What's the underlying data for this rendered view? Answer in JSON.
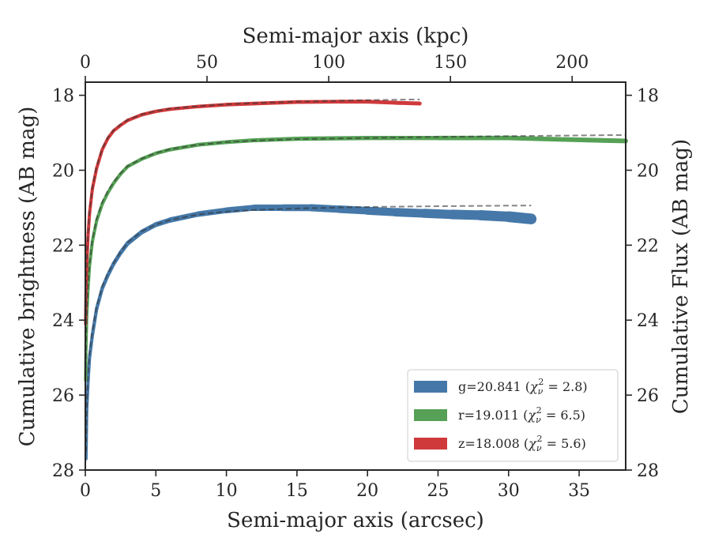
{
  "chart_data": {
    "type": "line",
    "xlabel": "Semi-major axis (arcsec)",
    "x2label": "Semi-major axis (kpc)",
    "ylabel": "Cumulative brightness (AB mag)",
    "y2label": "Cumulative Flux (AB mag)",
    "xlim": [
      0,
      38.3
    ],
    "ylim": [
      28,
      17.65
    ],
    "x2lim": [
      0,
      222
    ],
    "y_inverted": true,
    "xticks": [
      "0",
      "5",
      "10",
      "15",
      "20",
      "25",
      "30",
      "35"
    ],
    "xtick_values": [
      0,
      5,
      10,
      15,
      20,
      25,
      30,
      35
    ],
    "x2ticks": [
      "0",
      "50",
      "100",
      "150",
      "200"
    ],
    "x2tick_values": [
      0,
      50,
      100,
      150,
      200
    ],
    "yticks": [
      "18",
      "20",
      "22",
      "24",
      "26",
      "28"
    ],
    "ytick_values": [
      18,
      20,
      22,
      24,
      26,
      28
    ],
    "grid": false,
    "legend_position": "lower-right",
    "series": [
      {
        "name": "g",
        "legend_main": "g=20.841 (",
        "legend_chi": "χ",
        "legend_sub": "ν",
        "legend_sup": "2",
        "legend_rest": " = 2.8)",
        "color": "#4578a8",
        "x": [
          0.05,
          0.1,
          0.2,
          0.3,
          0.5,
          0.8,
          1.2,
          1.6,
          2.0,
          2.5,
          3.0,
          4.0,
          5.0,
          6.0,
          8.0,
          10.0,
          12.0,
          14.0,
          16.0,
          18.0,
          20.0,
          22.0,
          24.0,
          26.0,
          28.0,
          30.0,
          31.6
        ],
        "y": [
          27.7,
          26.4,
          25.6,
          25.0,
          24.4,
          23.7,
          23.15,
          22.8,
          22.5,
          22.2,
          21.95,
          21.65,
          21.45,
          21.33,
          21.17,
          21.07,
          21.0,
          21.0,
          21.0,
          21.04,
          21.08,
          21.12,
          21.15,
          21.18,
          21.2,
          21.24,
          21.3
        ],
        "width_start": 4,
        "width_end": 14
      },
      {
        "name": "r",
        "legend_main": "r=19.011 (",
        "legend_chi": "χ",
        "legend_sub": "ν",
        "legend_sup": "2",
        "legend_rest": " = 6.5)",
        "color": "#56a156",
        "x": [
          0.02,
          0.05,
          0.1,
          0.2,
          0.3,
          0.5,
          0.8,
          1.2,
          1.6,
          2.0,
          2.5,
          3.0,
          4.0,
          5.0,
          6.0,
          8.0,
          10.0,
          12.0,
          15.0,
          20.0,
          25.0,
          30.0,
          34.0,
          38.3
        ],
        "y": [
          25.6,
          24.7,
          23.9,
          23.1,
          22.55,
          21.9,
          21.35,
          20.9,
          20.6,
          20.35,
          20.1,
          19.9,
          19.7,
          19.55,
          19.45,
          19.32,
          19.25,
          19.2,
          19.16,
          19.14,
          19.14,
          19.14,
          19.18,
          19.22
        ],
        "width_start": 4,
        "width_end": 6
      },
      {
        "name": "z",
        "legend_main": "z=18.008 (",
        "legend_chi": "χ",
        "legend_sub": "ν",
        "legend_sup": "2",
        "legend_rest": " = 5.6)",
        "color": "#d0393b",
        "x": [
          0.02,
          0.05,
          0.1,
          0.2,
          0.3,
          0.5,
          0.8,
          1.2,
          1.6,
          2.0,
          2.5,
          3.0,
          4.0,
          5.0,
          6.0,
          8.0,
          10.0,
          12.0,
          15.0,
          18.0,
          20.0,
          22.0,
          23.7
        ],
        "y": [
          24.1,
          23.2,
          22.5,
          21.7,
          21.15,
          20.5,
          19.95,
          19.45,
          19.15,
          18.95,
          18.8,
          18.67,
          18.52,
          18.43,
          18.37,
          18.3,
          18.25,
          18.22,
          18.18,
          18.17,
          18.17,
          18.2,
          18.22
        ],
        "width_start": 4,
        "width_end": 5
      }
    ],
    "model_fits": [
      {
        "series": "g",
        "x": [
          0.05,
          0.1,
          0.2,
          0.3,
          0.5,
          0.8,
          1.2,
          1.6,
          2.0,
          2.5,
          3.0,
          4.0,
          5.0,
          6.0,
          8.0,
          10.0,
          12.0,
          15.0,
          20.0,
          25.0,
          31.6
        ],
        "y": [
          27.5,
          26.3,
          25.5,
          24.9,
          24.3,
          23.65,
          23.1,
          22.75,
          22.48,
          22.18,
          21.93,
          21.63,
          21.45,
          21.33,
          21.18,
          21.1,
          21.06,
          21.02,
          20.98,
          20.96,
          20.94
        ]
      },
      {
        "series": "r",
        "x": [
          0.02,
          0.05,
          0.1,
          0.2,
          0.3,
          0.5,
          0.8,
          1.2,
          1.6,
          2.0,
          2.5,
          3.0,
          4.0,
          5.0,
          6.0,
          8.0,
          10.0,
          12.0,
          15.0,
          20.0,
          25.0,
          30.0,
          38.3
        ],
        "y": [
          25.5,
          24.6,
          23.85,
          23.05,
          22.5,
          21.85,
          21.3,
          20.85,
          20.55,
          20.32,
          20.08,
          19.89,
          19.69,
          19.54,
          19.44,
          19.32,
          19.25,
          19.21,
          19.17,
          19.14,
          19.11,
          19.09,
          19.06
        ]
      },
      {
        "series": "z",
        "x": [
          0.02,
          0.05,
          0.1,
          0.2,
          0.3,
          0.5,
          0.8,
          1.2,
          1.6,
          2.0,
          2.5,
          3.0,
          4.0,
          5.0,
          6.0,
          8.0,
          10.0,
          12.0,
          15.0,
          20.0,
          23.7
        ],
        "y": [
          24.0,
          23.1,
          22.4,
          21.65,
          21.1,
          20.45,
          19.9,
          19.42,
          19.13,
          18.93,
          18.78,
          18.66,
          18.51,
          18.42,
          18.36,
          18.29,
          18.24,
          18.21,
          18.17,
          18.13,
          18.11
        ]
      }
    ]
  }
}
